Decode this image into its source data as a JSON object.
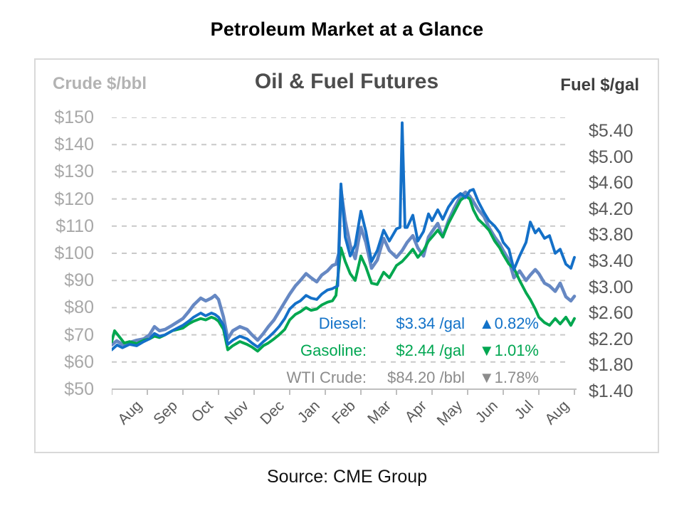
{
  "page": {
    "title": "Petroleum Market at a Glance",
    "source": "Source: CME Group"
  },
  "header": {
    "left_axis_title": "Crude $/bbl",
    "chart_title": "Oil & Fuel Futures",
    "right_axis_title": "Fuel $/gal"
  },
  "legend": {
    "rows": [
      {
        "name": "Diesel:",
        "value": "$3.34",
        "unit": "/gal",
        "direction": "up",
        "change": "0.82%",
        "color": "#1272c8"
      },
      {
        "name": "Gasoline:",
        "value": "$2.44",
        "unit": "/gal",
        "direction": "down",
        "change": "1.01%",
        "color": "#00a651"
      },
      {
        "name": "WTI Crude:",
        "value": "$84.20",
        "unit": "/bbl",
        "direction": "down",
        "change": "1.78%",
        "color": "#8c8c8c"
      }
    ]
  },
  "chart_data": {
    "type": "line",
    "title": "Oil & Fuel Futures",
    "x_axis": {
      "labels": [
        "Aug",
        "Sep",
        "Oct",
        "Nov",
        "Dec",
        "Jan",
        "Feb",
        "Mar",
        "Apr",
        "May",
        "Jun",
        "Jul",
        "Aug"
      ],
      "months_span": 13,
      "grid": false
    },
    "left_axis": {
      "title": "Crude $/bbl",
      "tick_labels": [
        "$150",
        "$140",
        "$130",
        "$120",
        "$110",
        "$100",
        "$90",
        "$80",
        "$70",
        "$60",
        "$50"
      ],
      "min": 50,
      "max": 150,
      "grid": "dashed"
    },
    "right_axis": {
      "title": "Fuel $/gal",
      "tick_labels": [
        "$5.40",
        "$5.00",
        "$4.60",
        "$4.20",
        "$3.80",
        "$3.40",
        "$3.00",
        "$2.60",
        "$2.20",
        "$1.80",
        "$1.40"
      ],
      "min": 1.4,
      "max": 5.4
    },
    "colors": {
      "wti": "#6688c3",
      "diesel": "#1470c8",
      "gasoline": "#00a74f",
      "gridline": "#c9c9c9",
      "axis": "#bfbfbf"
    },
    "series": [
      {
        "name": "WTI Crude",
        "axis": "left",
        "unit": "$/bbl",
        "color": "#6688c3",
        "width": 4.6,
        "points": [
          [
            0.0,
            66.3
          ],
          [
            0.14,
            67.8
          ],
          [
            0.3,
            66.5
          ],
          [
            0.5,
            67.2
          ],
          [
            0.7,
            68.0
          ],
          [
            0.9,
            68.5
          ],
          [
            1.06,
            70.0
          ],
          [
            1.2,
            73.0
          ],
          [
            1.34,
            71.5
          ],
          [
            1.5,
            72.0
          ],
          [
            1.7,
            73.5
          ],
          [
            2.0,
            76.0
          ],
          [
            2.16,
            78.5
          ],
          [
            2.3,
            81.0
          ],
          [
            2.5,
            83.5
          ],
          [
            2.64,
            82.5
          ],
          [
            2.8,
            83.5
          ],
          [
            2.9,
            84.5
          ],
          [
            3.0,
            83.0
          ],
          [
            3.14,
            76.5
          ],
          [
            3.26,
            68.5
          ],
          [
            3.4,
            71.5
          ],
          [
            3.6,
            73.0
          ],
          [
            3.8,
            72.0
          ],
          [
            3.94,
            70.0
          ],
          [
            4.1,
            68.0
          ],
          [
            4.26,
            70.5
          ],
          [
            4.4,
            73.0
          ],
          [
            4.56,
            75.5
          ],
          [
            4.7,
            78.5
          ],
          [
            4.86,
            82.0
          ],
          [
            5.0,
            85.0
          ],
          [
            5.16,
            88.0
          ],
          [
            5.3,
            90.0
          ],
          [
            5.46,
            92.5
          ],
          [
            5.6,
            91.0
          ],
          [
            5.76,
            89.5
          ],
          [
            5.9,
            92.0
          ],
          [
            6.06,
            93.5
          ],
          [
            6.2,
            95.5
          ],
          [
            6.3,
            96.0
          ],
          [
            6.38,
            100.0
          ],
          [
            6.44,
            123.5
          ],
          [
            6.56,
            112.0
          ],
          [
            6.7,
            103.0
          ],
          [
            6.84,
            98.0
          ],
          [
            7.0,
            109.5
          ],
          [
            7.14,
            104.0
          ],
          [
            7.3,
            94.5
          ],
          [
            7.46,
            97.5
          ],
          [
            7.64,
            105.5
          ],
          [
            7.8,
            101.0
          ],
          [
            8.0,
            98.5
          ],
          [
            8.16,
            101.0
          ],
          [
            8.3,
            104.0
          ],
          [
            8.46,
            106.5
          ],
          [
            8.6,
            102.0
          ],
          [
            8.76,
            99.0
          ],
          [
            8.9,
            106.0
          ],
          [
            9.0,
            108.0
          ],
          [
            9.16,
            111.0
          ],
          [
            9.3,
            106.0
          ],
          [
            9.46,
            112.0
          ],
          [
            9.62,
            116.5
          ],
          [
            9.8,
            121.0
          ],
          [
            9.94,
            122.5
          ],
          [
            10.06,
            121.0
          ],
          [
            10.16,
            119.0
          ],
          [
            10.3,
            116.0
          ],
          [
            10.46,
            113.5
          ],
          [
            10.6,
            109.5
          ],
          [
            10.76,
            106.0
          ],
          [
            10.9,
            103.5
          ],
          [
            11.0,
            101.0
          ],
          [
            11.16,
            97.5
          ],
          [
            11.3,
            91.0
          ],
          [
            11.46,
            93.5
          ],
          [
            11.64,
            90.0
          ],
          [
            11.76,
            92.0
          ],
          [
            11.9,
            94.0
          ],
          [
            12.0,
            92.5
          ],
          [
            12.16,
            89.0
          ],
          [
            12.3,
            88.0
          ],
          [
            12.46,
            86.0
          ],
          [
            12.6,
            89.0
          ],
          [
            12.76,
            84.0
          ],
          [
            12.9,
            82.5
          ],
          [
            13.0,
            84.2
          ]
        ]
      },
      {
        "name": "Gasoline",
        "axis": "right",
        "unit": "$/gal",
        "color": "#00a74f",
        "width": 3.9,
        "points": [
          [
            0.0,
            2.1
          ],
          [
            0.08,
            2.26
          ],
          [
            0.2,
            2.18
          ],
          [
            0.35,
            2.08
          ],
          [
            0.5,
            2.1
          ],
          [
            0.7,
            2.07
          ],
          [
            0.9,
            2.12
          ],
          [
            1.06,
            2.14
          ],
          [
            1.2,
            2.18
          ],
          [
            1.34,
            2.16
          ],
          [
            1.5,
            2.2
          ],
          [
            1.7,
            2.26
          ],
          [
            2.0,
            2.3
          ],
          [
            2.16,
            2.36
          ],
          [
            2.3,
            2.4
          ],
          [
            2.5,
            2.44
          ],
          [
            2.64,
            2.42
          ],
          [
            2.8,
            2.46
          ],
          [
            2.9,
            2.44
          ],
          [
            3.0,
            2.4
          ],
          [
            3.14,
            2.28
          ],
          [
            3.26,
            1.98
          ],
          [
            3.4,
            2.04
          ],
          [
            3.6,
            2.1
          ],
          [
            3.8,
            2.06
          ],
          [
            3.94,
            2.02
          ],
          [
            4.1,
            1.96
          ],
          [
            4.26,
            2.04
          ],
          [
            4.4,
            2.08
          ],
          [
            4.56,
            2.14
          ],
          [
            4.7,
            2.2
          ],
          [
            4.86,
            2.28
          ],
          [
            5.0,
            2.42
          ],
          [
            5.16,
            2.5
          ],
          [
            5.3,
            2.54
          ],
          [
            5.46,
            2.6
          ],
          [
            5.6,
            2.56
          ],
          [
            5.76,
            2.58
          ],
          [
            5.9,
            2.64
          ],
          [
            6.06,
            2.68
          ],
          [
            6.2,
            2.7
          ],
          [
            6.3,
            2.78
          ],
          [
            6.44,
            3.48
          ],
          [
            6.56,
            3.28
          ],
          [
            6.7,
            3.1
          ],
          [
            6.84,
            3.0
          ],
          [
            7.0,
            3.36
          ],
          [
            7.14,
            3.2
          ],
          [
            7.3,
            2.96
          ],
          [
            7.46,
            2.94
          ],
          [
            7.64,
            3.12
          ],
          [
            7.8,
            3.04
          ],
          [
            8.0,
            3.22
          ],
          [
            8.16,
            3.28
          ],
          [
            8.3,
            3.36
          ],
          [
            8.46,
            3.46
          ],
          [
            8.6,
            3.34
          ],
          [
            8.76,
            3.44
          ],
          [
            8.9,
            3.58
          ],
          [
            9.0,
            3.64
          ],
          [
            9.16,
            3.74
          ],
          [
            9.3,
            3.64
          ],
          [
            9.46,
            3.84
          ],
          [
            9.62,
            4.0
          ],
          [
            9.8,
            4.18
          ],
          [
            9.94,
            4.24
          ],
          [
            10.06,
            4.2
          ],
          [
            10.16,
            4.04
          ],
          [
            10.3,
            3.9
          ],
          [
            10.46,
            3.82
          ],
          [
            10.6,
            3.74
          ],
          [
            10.76,
            3.58
          ],
          [
            10.9,
            3.48
          ],
          [
            11.0,
            3.38
          ],
          [
            11.16,
            3.24
          ],
          [
            11.3,
            3.18
          ],
          [
            11.46,
            3.0
          ],
          [
            11.64,
            2.82
          ],
          [
            11.76,
            2.72
          ],
          [
            11.9,
            2.58
          ],
          [
            12.0,
            2.46
          ],
          [
            12.16,
            2.38
          ],
          [
            12.3,
            2.34
          ],
          [
            12.46,
            2.44
          ],
          [
            12.6,
            2.36
          ],
          [
            12.76,
            2.46
          ],
          [
            12.9,
            2.34
          ],
          [
            13.0,
            2.44
          ]
        ]
      },
      {
        "name": "Diesel",
        "axis": "right",
        "unit": "$/gal",
        "color": "#1470c8",
        "width": 3.9,
        "points": [
          [
            0.0,
            1.98
          ],
          [
            0.15,
            2.05
          ],
          [
            0.3,
            2.01
          ],
          [
            0.5,
            2.06
          ],
          [
            0.7,
            2.04
          ],
          [
            0.9,
            2.1
          ],
          [
            1.06,
            2.14
          ],
          [
            1.2,
            2.22
          ],
          [
            1.34,
            2.18
          ],
          [
            1.5,
            2.2
          ],
          [
            1.7,
            2.26
          ],
          [
            2.0,
            2.34
          ],
          [
            2.16,
            2.4
          ],
          [
            2.3,
            2.46
          ],
          [
            2.5,
            2.52
          ],
          [
            2.64,
            2.48
          ],
          [
            2.8,
            2.52
          ],
          [
            2.9,
            2.5
          ],
          [
            3.0,
            2.46
          ],
          [
            3.14,
            2.34
          ],
          [
            3.26,
            2.06
          ],
          [
            3.4,
            2.12
          ],
          [
            3.6,
            2.18
          ],
          [
            3.8,
            2.14
          ],
          [
            3.94,
            2.08
          ],
          [
            4.1,
            2.02
          ],
          [
            4.26,
            2.1
          ],
          [
            4.4,
            2.16
          ],
          [
            4.56,
            2.24
          ],
          [
            4.7,
            2.32
          ],
          [
            4.86,
            2.44
          ],
          [
            5.0,
            2.58
          ],
          [
            5.16,
            2.66
          ],
          [
            5.3,
            2.7
          ],
          [
            5.46,
            2.78
          ],
          [
            5.6,
            2.74
          ],
          [
            5.76,
            2.72
          ],
          [
            5.9,
            2.8
          ],
          [
            6.06,
            2.86
          ],
          [
            6.2,
            2.88
          ],
          [
            6.35,
            2.92
          ],
          [
            6.44,
            4.42
          ],
          [
            6.56,
            3.64
          ],
          [
            6.7,
            3.36
          ],
          [
            6.84,
            3.52
          ],
          [
            7.0,
            4.02
          ],
          [
            7.14,
            3.72
          ],
          [
            7.3,
            3.28
          ],
          [
            7.46,
            3.44
          ],
          [
            7.64,
            3.74
          ],
          [
            7.8,
            3.58
          ],
          [
            8.0,
            3.76
          ],
          [
            8.1,
            3.78
          ],
          [
            8.16,
            5.32
          ],
          [
            8.24,
            3.78
          ],
          [
            8.3,
            3.78
          ],
          [
            8.46,
            3.96
          ],
          [
            8.6,
            3.58
          ],
          [
            8.76,
            3.72
          ],
          [
            8.9,
            3.98
          ],
          [
            9.0,
            3.88
          ],
          [
            9.16,
            4.04
          ],
          [
            9.3,
            3.9
          ],
          [
            9.46,
            4.08
          ],
          [
            9.62,
            4.2
          ],
          [
            9.8,
            4.28
          ],
          [
            9.94,
            4.22
          ],
          [
            10.06,
            4.32
          ],
          [
            10.16,
            4.34
          ],
          [
            10.3,
            4.16
          ],
          [
            10.46,
            4.0
          ],
          [
            10.6,
            3.88
          ],
          [
            10.76,
            3.8
          ],
          [
            10.9,
            3.7
          ],
          [
            11.0,
            3.56
          ],
          [
            11.16,
            3.46
          ],
          [
            11.3,
            3.16
          ],
          [
            11.46,
            3.36
          ],
          [
            11.64,
            3.56
          ],
          [
            11.76,
            3.86
          ],
          [
            11.9,
            3.7
          ],
          [
            12.0,
            3.76
          ],
          [
            12.16,
            3.62
          ],
          [
            12.3,
            3.66
          ],
          [
            12.46,
            3.4
          ],
          [
            12.6,
            3.46
          ],
          [
            12.76,
            3.24
          ],
          [
            12.9,
            3.18
          ],
          [
            13.0,
            3.34
          ]
        ]
      }
    ]
  }
}
